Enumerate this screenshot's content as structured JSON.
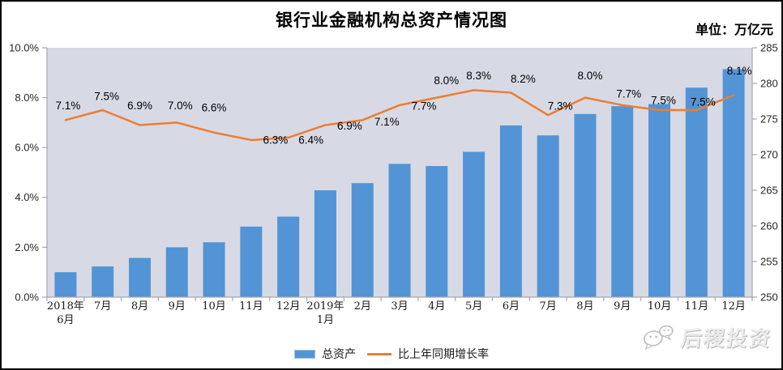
{
  "title": "银行业金融机构总资产情况图",
  "unit_label": "单位：万亿元",
  "colors": {
    "bar": "#5294D5",
    "line": "#ED7D31",
    "plot_bg": "#D7DAE4",
    "axis": "#A3A8B0",
    "title_color": "#000000",
    "watermark_gray": "#C6C6C6"
  },
  "legend": [
    {
      "label": "总资产",
      "type": "bar"
    },
    {
      "label": "比上年同期增长率",
      "type": "line"
    }
  ],
  "watermark": {
    "icon": "wechat-icon",
    "text": "后稷投资"
  },
  "chart_data": {
    "type": "bar",
    "title": "银行业金融机构总资产情况图",
    "subtitle": "单位：万亿元",
    "categories": [
      "2018年6月",
      "7月",
      "8月",
      "9月",
      "10月",
      "11月",
      "12月",
      "2019年1月",
      "2月",
      "3月",
      "4月",
      "5月",
      "6月",
      "7月",
      "8月",
      "9月",
      "10月",
      "11月",
      "12月"
    ],
    "category_display_lines": [
      [
        "2018年",
        "6月"
      ],
      [
        "7月"
      ],
      [
        "8月"
      ],
      [
        "9月"
      ],
      [
        "10月"
      ],
      [
        "11月"
      ],
      [
        "12月"
      ],
      [
        "2019年",
        "1月"
      ],
      [
        "2月"
      ],
      [
        "3月"
      ],
      [
        "4月"
      ],
      [
        "5月"
      ],
      [
        "6月"
      ],
      [
        "7月"
      ],
      [
        "8月"
      ],
      [
        "9月"
      ],
      [
        "10月"
      ],
      [
        "11月"
      ],
      [
        "12月"
      ]
    ],
    "series": [
      {
        "name": "总资产",
        "type": "bar",
        "axis": "right",
        "values": [
          253.5,
          254.3,
          255.5,
          257.0,
          257.7,
          259.9,
          261.3,
          265.0,
          266.0,
          268.7,
          268.4,
          270.4,
          274.1,
          272.7,
          275.7,
          276.8,
          277.1,
          279.4,
          282.0
        ]
      },
      {
        "name": "比上年同期增长率",
        "type": "line",
        "axis": "left",
        "values": [
          7.1,
          7.5,
          6.9,
          7.0,
          6.6,
          6.3,
          6.4,
          6.9,
          7.1,
          7.7,
          8.0,
          8.3,
          8.2,
          7.3,
          8.0,
          7.7,
          7.5,
          7.5,
          8.1
        ],
        "point_labels": [
          "7.1%",
          "7.5%",
          "6.9%",
          "7.0%",
          "6.6%",
          "6.3%",
          "6.4%",
          "6.9%",
          "7.1%",
          "7.7%",
          "8.0%",
          "8.3%",
          "8.2%",
          "7.3%",
          "8.0%",
          "7.7%",
          "7.5%",
          "7.5%",
          "8.1%"
        ]
      }
    ],
    "left_axis": {
      "min": 0,
      "max": 10,
      "tick_labels": [
        "0.0%",
        "2.0%",
        "4.0%",
        "6.0%",
        "8.0%",
        "10.0%"
      ],
      "tick_values": [
        0,
        2,
        4,
        6,
        8,
        10
      ]
    },
    "right_axis": {
      "min": 250,
      "max": 285,
      "tick_labels": [
        "250",
        "255",
        "260",
        "265",
        "270",
        "275",
        "280",
        "285"
      ],
      "tick_values": [
        250,
        255,
        260,
        265,
        270,
        275,
        280,
        285
      ]
    },
    "grid": false,
    "legend_position": "bottom"
  }
}
